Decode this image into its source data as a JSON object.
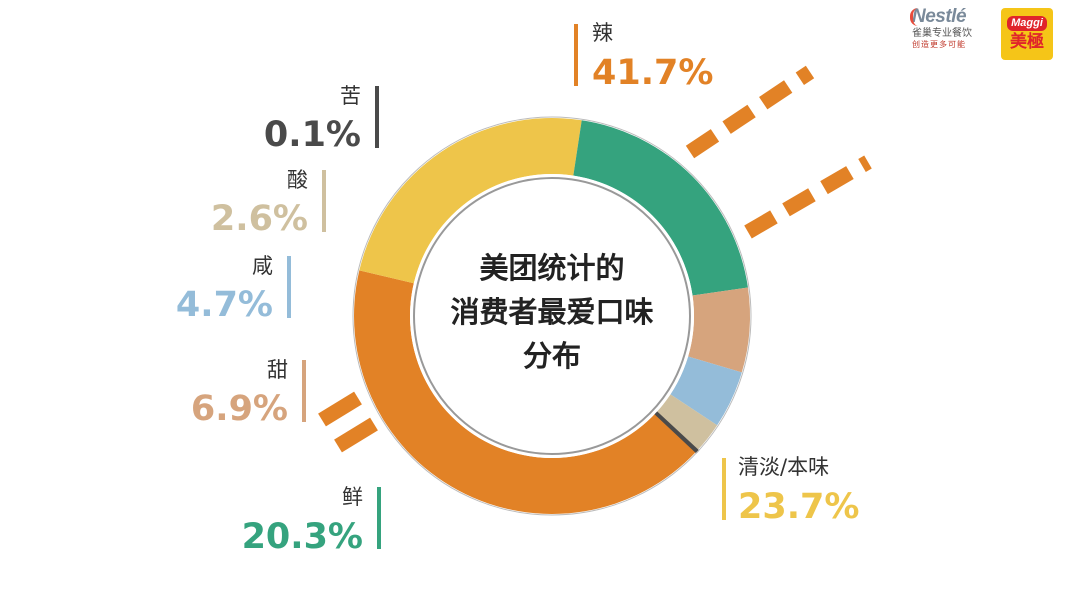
{
  "chart_data": {
    "type": "pie",
    "title": "美团统计的消费者最爱口味分布",
    "title_lines": [
      "美团统计的",
      "消费者最爱口味",
      "分布"
    ],
    "slices": [
      {
        "label": "辣",
        "value": 41.7,
        "value_text": "41.7%",
        "color": "#e28226"
      },
      {
        "label": "清淡/本味",
        "value": 23.7,
        "value_text": "23.7%",
        "color": "#eec54a"
      },
      {
        "label": "鲜",
        "value": 20.3,
        "value_text": "20.3%",
        "color": "#35a37e"
      },
      {
        "label": "甜",
        "value": 6.9,
        "value_text": "6.9%",
        "color": "#d6a47d"
      },
      {
        "label": "咸",
        "value": 4.7,
        "value_text": "4.7%",
        "color": "#94bcd9"
      },
      {
        "label": "酸",
        "value": 2.6,
        "value_text": "2.6%",
        "color": "#cfc09f"
      },
      {
        "label": "苦",
        "value": 0.1,
        "value_text": "0.1%",
        "color": "#4a4a4a"
      }
    ],
    "style": "donut",
    "legend": "labels beside chart"
  },
  "logos": {
    "nestle_word": "Nestlé",
    "nestle_sub": "雀巢专业餐饮",
    "nestle_tag": "创造更多可能",
    "maggi_word": "Maggi",
    "maggi_cn": "美極"
  },
  "colors": {
    "accent_orange": "#e28226",
    "ring_outline": "#999999"
  }
}
